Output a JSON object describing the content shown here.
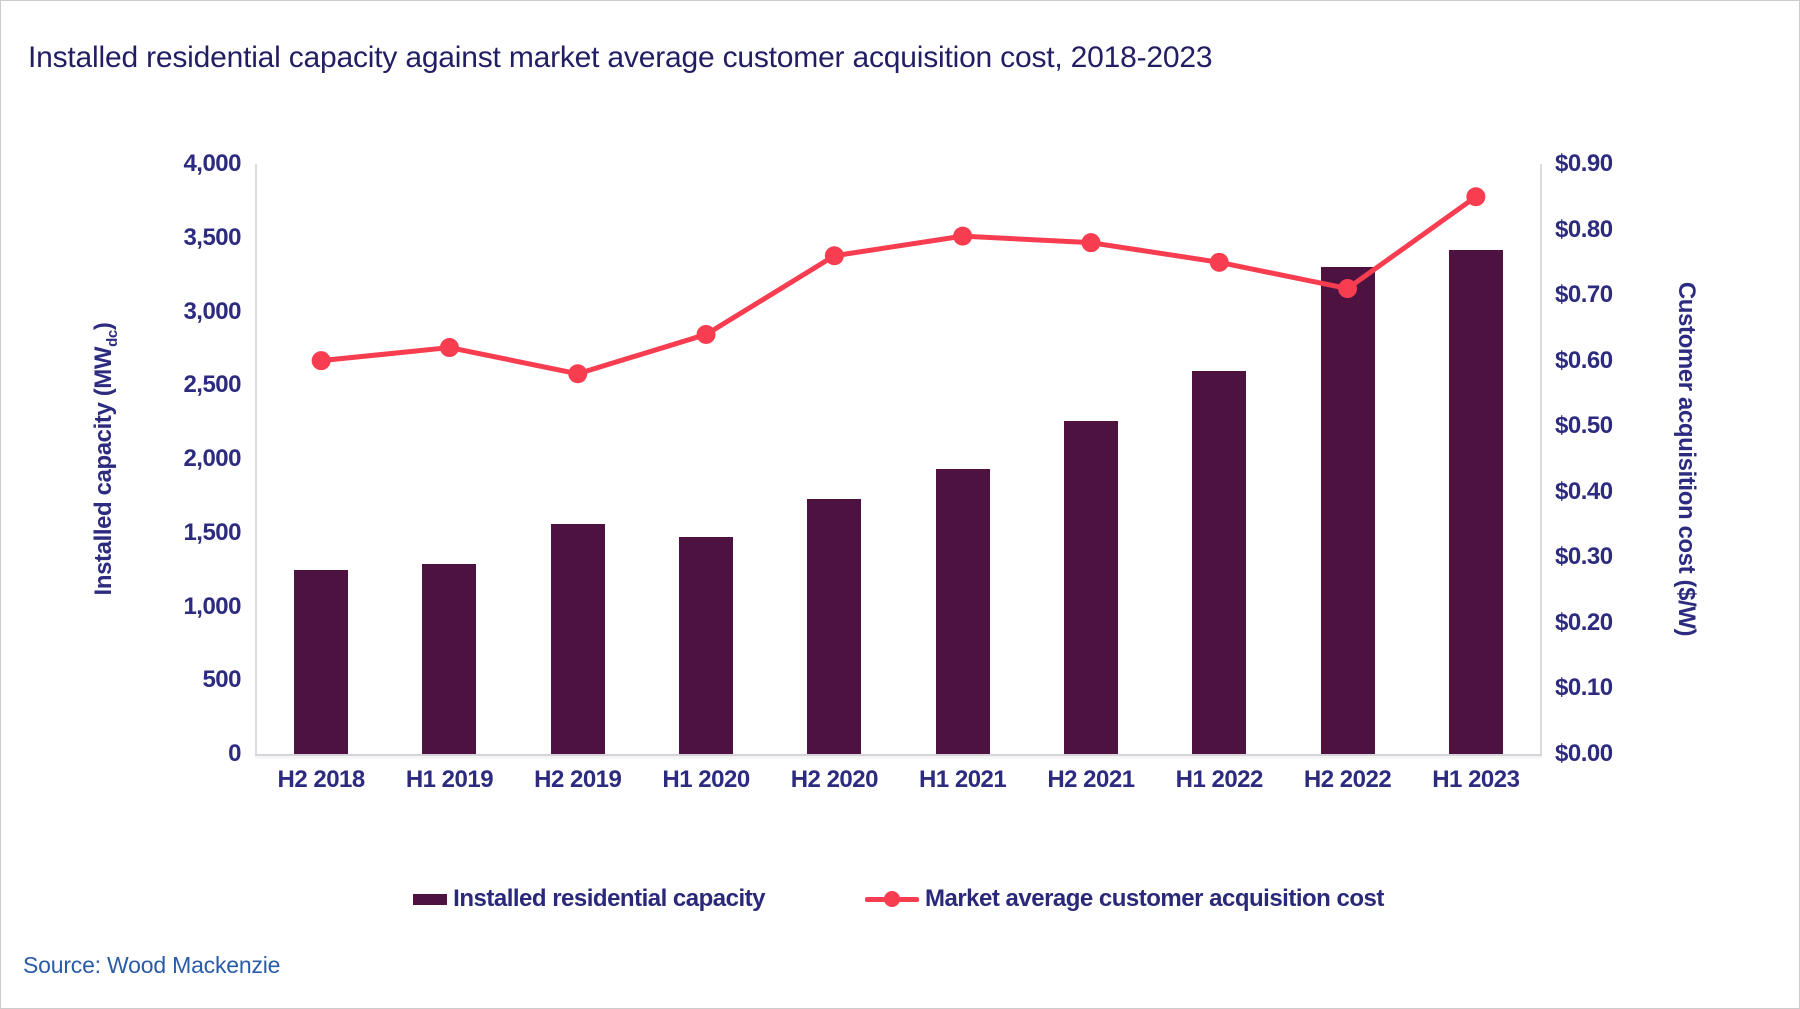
{
  "title": "Installed residential capacity against market average customer acquisition cost, 2018-2023",
  "source": "Source: Wood Mackenzie",
  "colors": {
    "bar": "#4D123F",
    "line": "#F93D50",
    "title_text": "#221E63",
    "axis_text": "#2D2B7F",
    "source_text": "#2A5BA7",
    "axis_line": "#D6D3DA"
  },
  "chart_data": {
    "type": "bar",
    "subtype": "combo-bar-line-dual-axis",
    "title": "Installed residential capacity against market average customer acquisition cost, 2018-2023",
    "grid": false,
    "legend_position": "bottom-center",
    "categories": [
      "H2 2018",
      "H1 2019",
      "H2 2019",
      "H1 2020",
      "H2 2020",
      "H1 2021",
      "H2 2021",
      "H1 2022",
      "H2 2022",
      "H1 2023"
    ],
    "series": [
      {
        "name": "Installed residential capacity",
        "type": "bar",
        "axis": "left",
        "values": [
          1250,
          1290,
          1560,
          1470,
          1730,
          1930,
          2260,
          2600,
          3300,
          3420
        ]
      },
      {
        "name": "Market average customer acquisition cost",
        "type": "line",
        "axis": "right",
        "values": [
          0.6,
          0.62,
          0.58,
          0.64,
          0.76,
          0.79,
          0.78,
          0.75,
          0.71,
          0.85
        ]
      }
    ],
    "left_axis": {
      "title_main": "Installed capacity (MW",
      "title_sub": "dc",
      "title_close": ")",
      "min": 0,
      "max": 4000,
      "step": 500,
      "tick_labels": [
        "0",
        "500",
        "1,000",
        "1,500",
        "2,000",
        "2,500",
        "3,000",
        "3,500",
        "4,000"
      ]
    },
    "right_axis": {
      "title": "Customer acquisition cost ($/W)",
      "min": 0,
      "max": 0.9,
      "step": 0.1,
      "tick_labels": [
        "$0.00",
        "$0.10",
        "$0.20",
        "$0.30",
        "$0.40",
        "$0.50",
        "$0.60",
        "$0.70",
        "$0.80",
        "$0.90"
      ]
    },
    "legend": [
      {
        "label": "Installed residential capacity",
        "swatch": "bar"
      },
      {
        "label": "Market average customer acquisition cost",
        "swatch": "line"
      }
    ]
  }
}
